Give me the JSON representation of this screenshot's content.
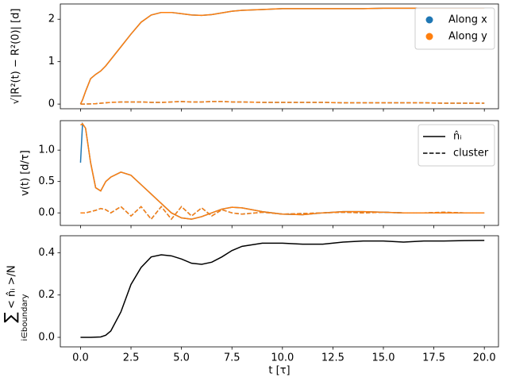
{
  "chart_data": [
    {
      "type": "line",
      "ylabel": "√|R²(t) − R²(0)| [d]",
      "x": [
        0,
        0.1,
        0.25,
        0.5,
        0.75,
        1,
        1.25,
        1.5,
        2,
        2.5,
        3,
        3.5,
        4,
        4.5,
        5,
        5.5,
        6,
        6.5,
        7,
        7.5,
        8,
        9,
        10,
        11,
        12,
        13,
        14,
        15,
        16,
        17,
        18,
        19,
        20
      ],
      "xlim": [
        -1,
        20.7
      ],
      "ylim": [
        -0.11,
        2.36
      ],
      "yticks": [
        0,
        1,
        2
      ],
      "legend": "upper right",
      "series": [
        {
          "name": "Along x",
          "color": "#1f77b4",
          "style": "solid",
          "values": [
            0,
            0.1,
            0.3,
            0.6,
            0.7,
            0.78,
            0.9,
            1.05,
            1.35,
            1.65,
            1.93,
            2.1,
            2.16,
            2.16,
            2.13,
            2.1,
            2.09,
            2.11,
            2.15,
            2.19,
            2.21,
            2.23,
            2.25,
            2.25,
            2.25,
            2.25,
            2.25,
            2.26,
            2.26,
            2.26,
            2.26,
            2.26,
            2.26
          ]
        },
        {
          "name": "Along y",
          "color": "#ff7f0e",
          "style": "solid",
          "values": [
            0,
            0.1,
            0.3,
            0.6,
            0.7,
            0.78,
            0.9,
            1.05,
            1.35,
            1.65,
            1.93,
            2.1,
            2.16,
            2.16,
            2.13,
            2.1,
            2.09,
            2.11,
            2.15,
            2.19,
            2.21,
            2.23,
            2.25,
            2.25,
            2.25,
            2.25,
            2.25,
            2.26,
            2.26,
            2.26,
            2.26,
            2.26,
            2.26
          ]
        },
        {
          "color": "#1f77b4",
          "style": "dashed",
          "values": [
            0,
            0,
            0,
            0.005,
            0.01,
            0.02,
            0.03,
            0.04,
            0.05,
            0.05,
            0.05,
            0.04,
            0.04,
            0.05,
            0.06,
            0.05,
            0.05,
            0.06,
            0.06,
            0.05,
            0.05,
            0.04,
            0.04,
            0.04,
            0.04,
            0.03,
            0.03,
            0.03,
            0.03,
            0.03,
            0.02,
            0.02,
            0.02
          ]
        },
        {
          "color": "#ff7f0e",
          "style": "dashed",
          "values": [
            0,
            0,
            0,
            0.005,
            0.01,
            0.02,
            0.03,
            0.04,
            0.05,
            0.05,
            0.05,
            0.04,
            0.04,
            0.05,
            0.06,
            0.05,
            0.05,
            0.06,
            0.06,
            0.05,
            0.05,
            0.04,
            0.04,
            0.04,
            0.04,
            0.03,
            0.03,
            0.03,
            0.03,
            0.03,
            0.02,
            0.02,
            0.02
          ]
        }
      ]
    },
    {
      "type": "line",
      "ylabel": "v(t) [d/τ]",
      "x": [
        0,
        0.1,
        0.25,
        0.5,
        0.75,
        1,
        1.25,
        1.5,
        2,
        2.5,
        3,
        3.5,
        4,
        4.5,
        5,
        5.5,
        6,
        6.5,
        7,
        7.5,
        8,
        9,
        10,
        11,
        12,
        13,
        14,
        15,
        16,
        17,
        18,
        19,
        20
      ],
      "xlim": [
        -1,
        20.7
      ],
      "ylim": [
        -0.2,
        1.47
      ],
      "yticks": [
        {
          "value": 0,
          "label": "0.0"
        },
        0.5,
        {
          "value": 1,
          "label": "1.0"
        }
      ],
      "legend": "upper right",
      "legend_entries": [
        {
          "label": "n̂ᵢ",
          "style": "solid",
          "color": "#000000"
        },
        {
          "label": "cluster",
          "style": "dashed",
          "color": "#000000"
        }
      ],
      "series": [
        {
          "color": "#1f77b4",
          "style": "solid",
          "values": [
            0.8,
            1.42,
            1.35,
            0.8,
            0.4,
            0.35,
            0.5,
            0.57,
            0.65,
            0.6,
            0.45,
            0.3,
            0.15,
            0,
            -0.08,
            -0.1,
            -0.06,
            0,
            0.06,
            0.09,
            0.08,
            0.02,
            -0.02,
            -0.03,
            0,
            0.02,
            0.02,
            0.01,
            0,
            0,
            0,
            0,
            0
          ]
        },
        {
          "color": "#ff7f0e",
          "style": "solid",
          "values": [
            1.4,
            1.42,
            1.35,
            0.8,
            0.4,
            0.35,
            0.5,
            0.57,
            0.65,
            0.6,
            0.45,
            0.3,
            0.15,
            0,
            -0.08,
            -0.1,
            -0.06,
            0,
            0.06,
            0.09,
            0.08,
            0.02,
            -0.02,
            -0.03,
            0,
            0.02,
            0.02,
            0.01,
            0,
            0,
            0,
            0,
            0
          ]
        },
        {
          "color": "#1f77b4",
          "style": "dashed",
          "values": [
            0,
            0,
            0,
            0.02,
            0.04,
            0.07,
            0.05,
            0,
            0.1,
            -0.05,
            0.1,
            -0.1,
            0.1,
            -0.1,
            0.1,
            -0.05,
            0.08,
            -0.05,
            0.05,
            0,
            -0.02,
            0.01,
            -0.02,
            -0.01,
            0,
            0.01,
            0,
            0.01,
            0,
            0,
            0.01,
            0,
            0
          ]
        },
        {
          "color": "#ff7f0e",
          "style": "dashed",
          "values": [
            0,
            0,
            0,
            0.02,
            0.04,
            0.07,
            0.05,
            0,
            0.1,
            -0.05,
            0.1,
            -0.1,
            0.1,
            -0.1,
            0.1,
            -0.05,
            0.08,
            -0.05,
            0.05,
            0,
            -0.02,
            0.01,
            -0.02,
            -0.01,
            0,
            0.01,
            0,
            0.01,
            0,
            0,
            0.01,
            0,
            0
          ]
        }
      ]
    },
    {
      "type": "line",
      "ylabel": {
        "sum": "∑",
        "sub": "i∈boundary",
        "body": "< n̂ᵢ >/N"
      },
      "xlabel": "t [τ]",
      "x": [
        0,
        0.1,
        0.25,
        0.5,
        0.75,
        1,
        1.25,
        1.5,
        2,
        2.5,
        3,
        3.5,
        4,
        4.5,
        5,
        5.5,
        6,
        6.5,
        7,
        7.5,
        8,
        9,
        10,
        11,
        12,
        13,
        14,
        15,
        16,
        17,
        18,
        19,
        20
      ],
      "xlim": [
        -1,
        20.7
      ],
      "ylim": [
        -0.045,
        0.48
      ],
      "xticks": [
        {
          "value": 0,
          "label": "0.0"
        },
        2.5,
        {
          "value": 5,
          "label": "5.0"
        },
        7.5,
        {
          "value": 10,
          "label": "10.0"
        },
        12.5,
        {
          "value": 15,
          "label": "15.0"
        },
        17.5,
        {
          "value": 20,
          "label": "20.0"
        }
      ],
      "yticks": [
        {
          "value": 0,
          "label": "0.0"
        },
        0.2,
        0.4
      ],
      "series": [
        {
          "color": "#000000",
          "style": "solid",
          "values": [
            0,
            0,
            0,
            0,
            0.001,
            0.002,
            0.01,
            0.03,
            0.12,
            0.25,
            0.33,
            0.38,
            0.39,
            0.385,
            0.37,
            0.35,
            0.345,
            0.355,
            0.38,
            0.41,
            0.43,
            0.445,
            0.445,
            0.44,
            0.44,
            0.45,
            0.455,
            0.455,
            0.45,
            0.455,
            0.455,
            0.457,
            0.458
          ]
        }
      ]
    }
  ]
}
